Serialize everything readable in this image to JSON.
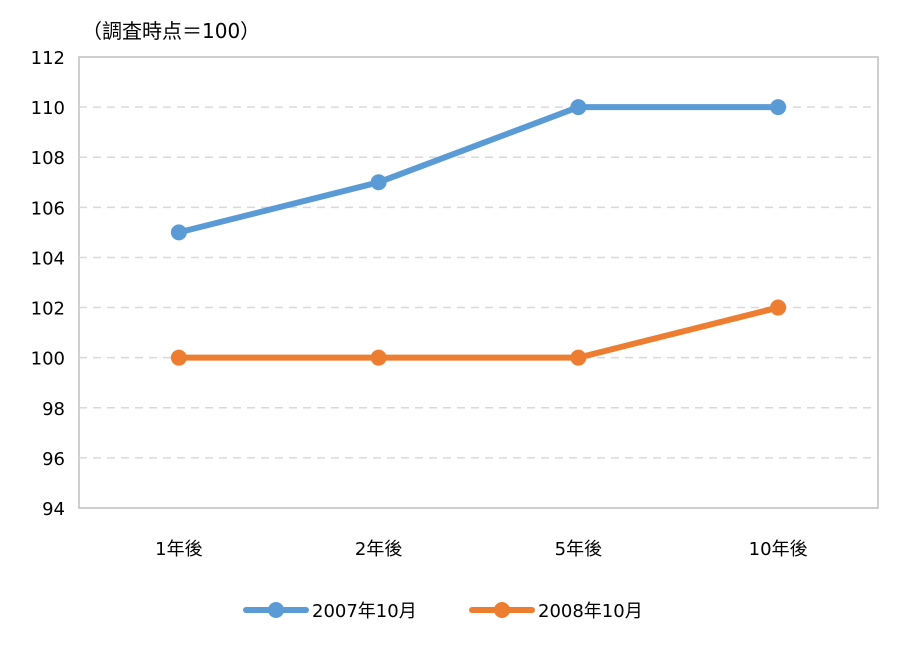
{
  "unit_label": "（調査時点＝100）",
  "chart_data": {
    "type": "line",
    "title": "",
    "xlabel": "",
    "ylabel": "",
    "categories": [
      "1年後",
      "2年後",
      "5年後",
      "10年後"
    ],
    "ylim": [
      94,
      112
    ],
    "yticks": [
      94,
      96,
      98,
      100,
      102,
      104,
      106,
      108,
      110,
      112
    ],
    "grid": true,
    "legend_position": "bottom",
    "series": [
      {
        "name": "2007年10月",
        "values": [
          105,
          107,
          110,
          110
        ],
        "color": "#5B9BD5"
      },
      {
        "name": "2008年10月",
        "values": [
          100,
          100,
          100,
          102
        ],
        "color": "#ED7D31"
      }
    ]
  }
}
